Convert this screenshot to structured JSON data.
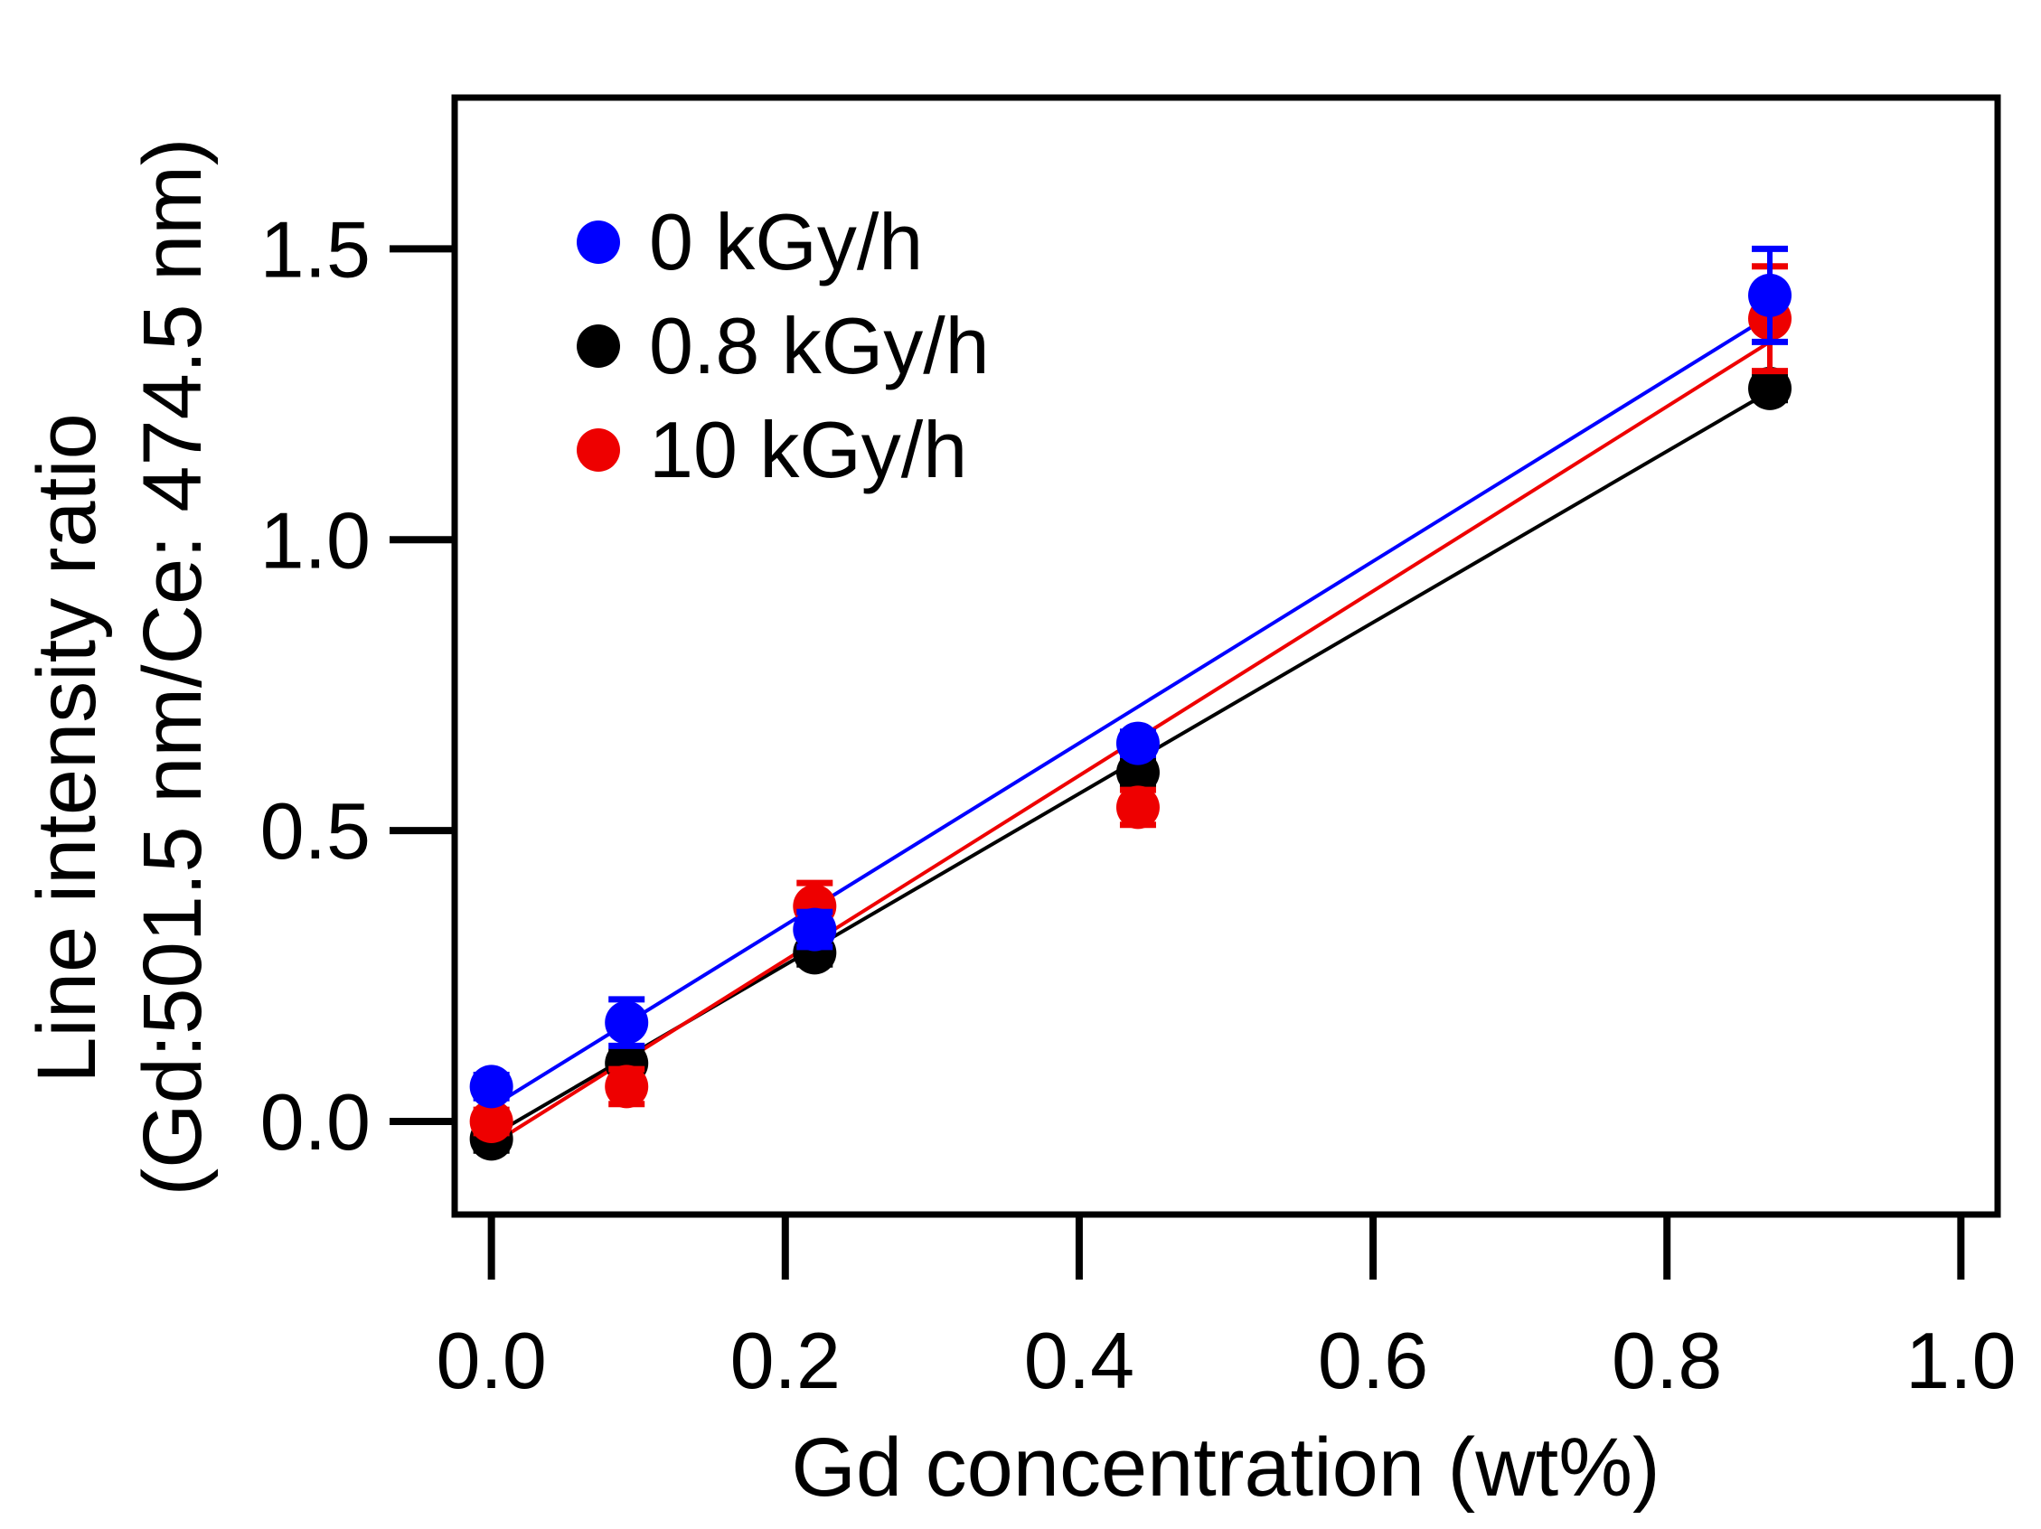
{
  "chart_data": {
    "type": "scatter",
    "title": "",
    "xlabel": "Gd concentration (wt%)",
    "ylabel_line1": "Line intensity ratio",
    "ylabel_line2": "(Gd:501.5 nm/Ce: 474.5 nm)",
    "xlim": [
      -0.025,
      1.025
    ],
    "ylim": [
      -0.16,
      1.76
    ],
    "xticks": [
      0.0,
      0.2,
      0.4,
      0.6,
      0.8,
      1.0
    ],
    "xtick_labels": [
      "0.0",
      "0.2",
      "0.4",
      "0.6",
      "0.8",
      "1.0"
    ],
    "yticks": [
      0.0,
      0.5,
      1.0,
      1.5
    ],
    "ytick_labels": [
      "0.0",
      "0.5",
      "1.0",
      "1.5"
    ],
    "grid": false,
    "legend_position": "top-left",
    "series": [
      {
        "name": "0 kGy/h",
        "color": "#0000ff",
        "x": [
          0.0,
          0.092,
          0.22,
          0.44,
          0.87
        ],
        "y": [
          0.06,
          0.17,
          0.33,
          0.65,
          1.42
        ],
        "yerr": [
          0.02,
          0.04,
          0.03,
          0.02,
          0.08
        ],
        "fit": {
          "x": [
            0.0,
            0.87
          ],
          "y": [
            0.025,
            1.385
          ]
        }
      },
      {
        "name": "0.8 kGy/h",
        "color": "#000000",
        "x": [
          0.0,
          0.092,
          0.22,
          0.44,
          0.87
        ],
        "y": [
          -0.03,
          0.1,
          0.29,
          0.6,
          1.26
        ],
        "yerr": [
          0.02,
          0.02,
          0.02,
          0.02,
          0.02
        ],
        "fit": {
          "x": [
            0.0,
            0.87
          ],
          "y": [
            -0.025,
            1.255
          ]
        }
      },
      {
        "name": "10 kGy/h",
        "color": "#ee0000",
        "x": [
          0.0,
          0.092,
          0.22,
          0.44,
          0.87
        ],
        "y": [
          0.0,
          0.06,
          0.37,
          0.54,
          1.38
        ],
        "yerr": [
          0.02,
          0.03,
          0.04,
          0.03,
          0.09
        ],
        "fit": {
          "x": [
            0.0,
            0.87
          ],
          "y": [
            -0.04,
            1.34
          ]
        }
      }
    ]
  }
}
